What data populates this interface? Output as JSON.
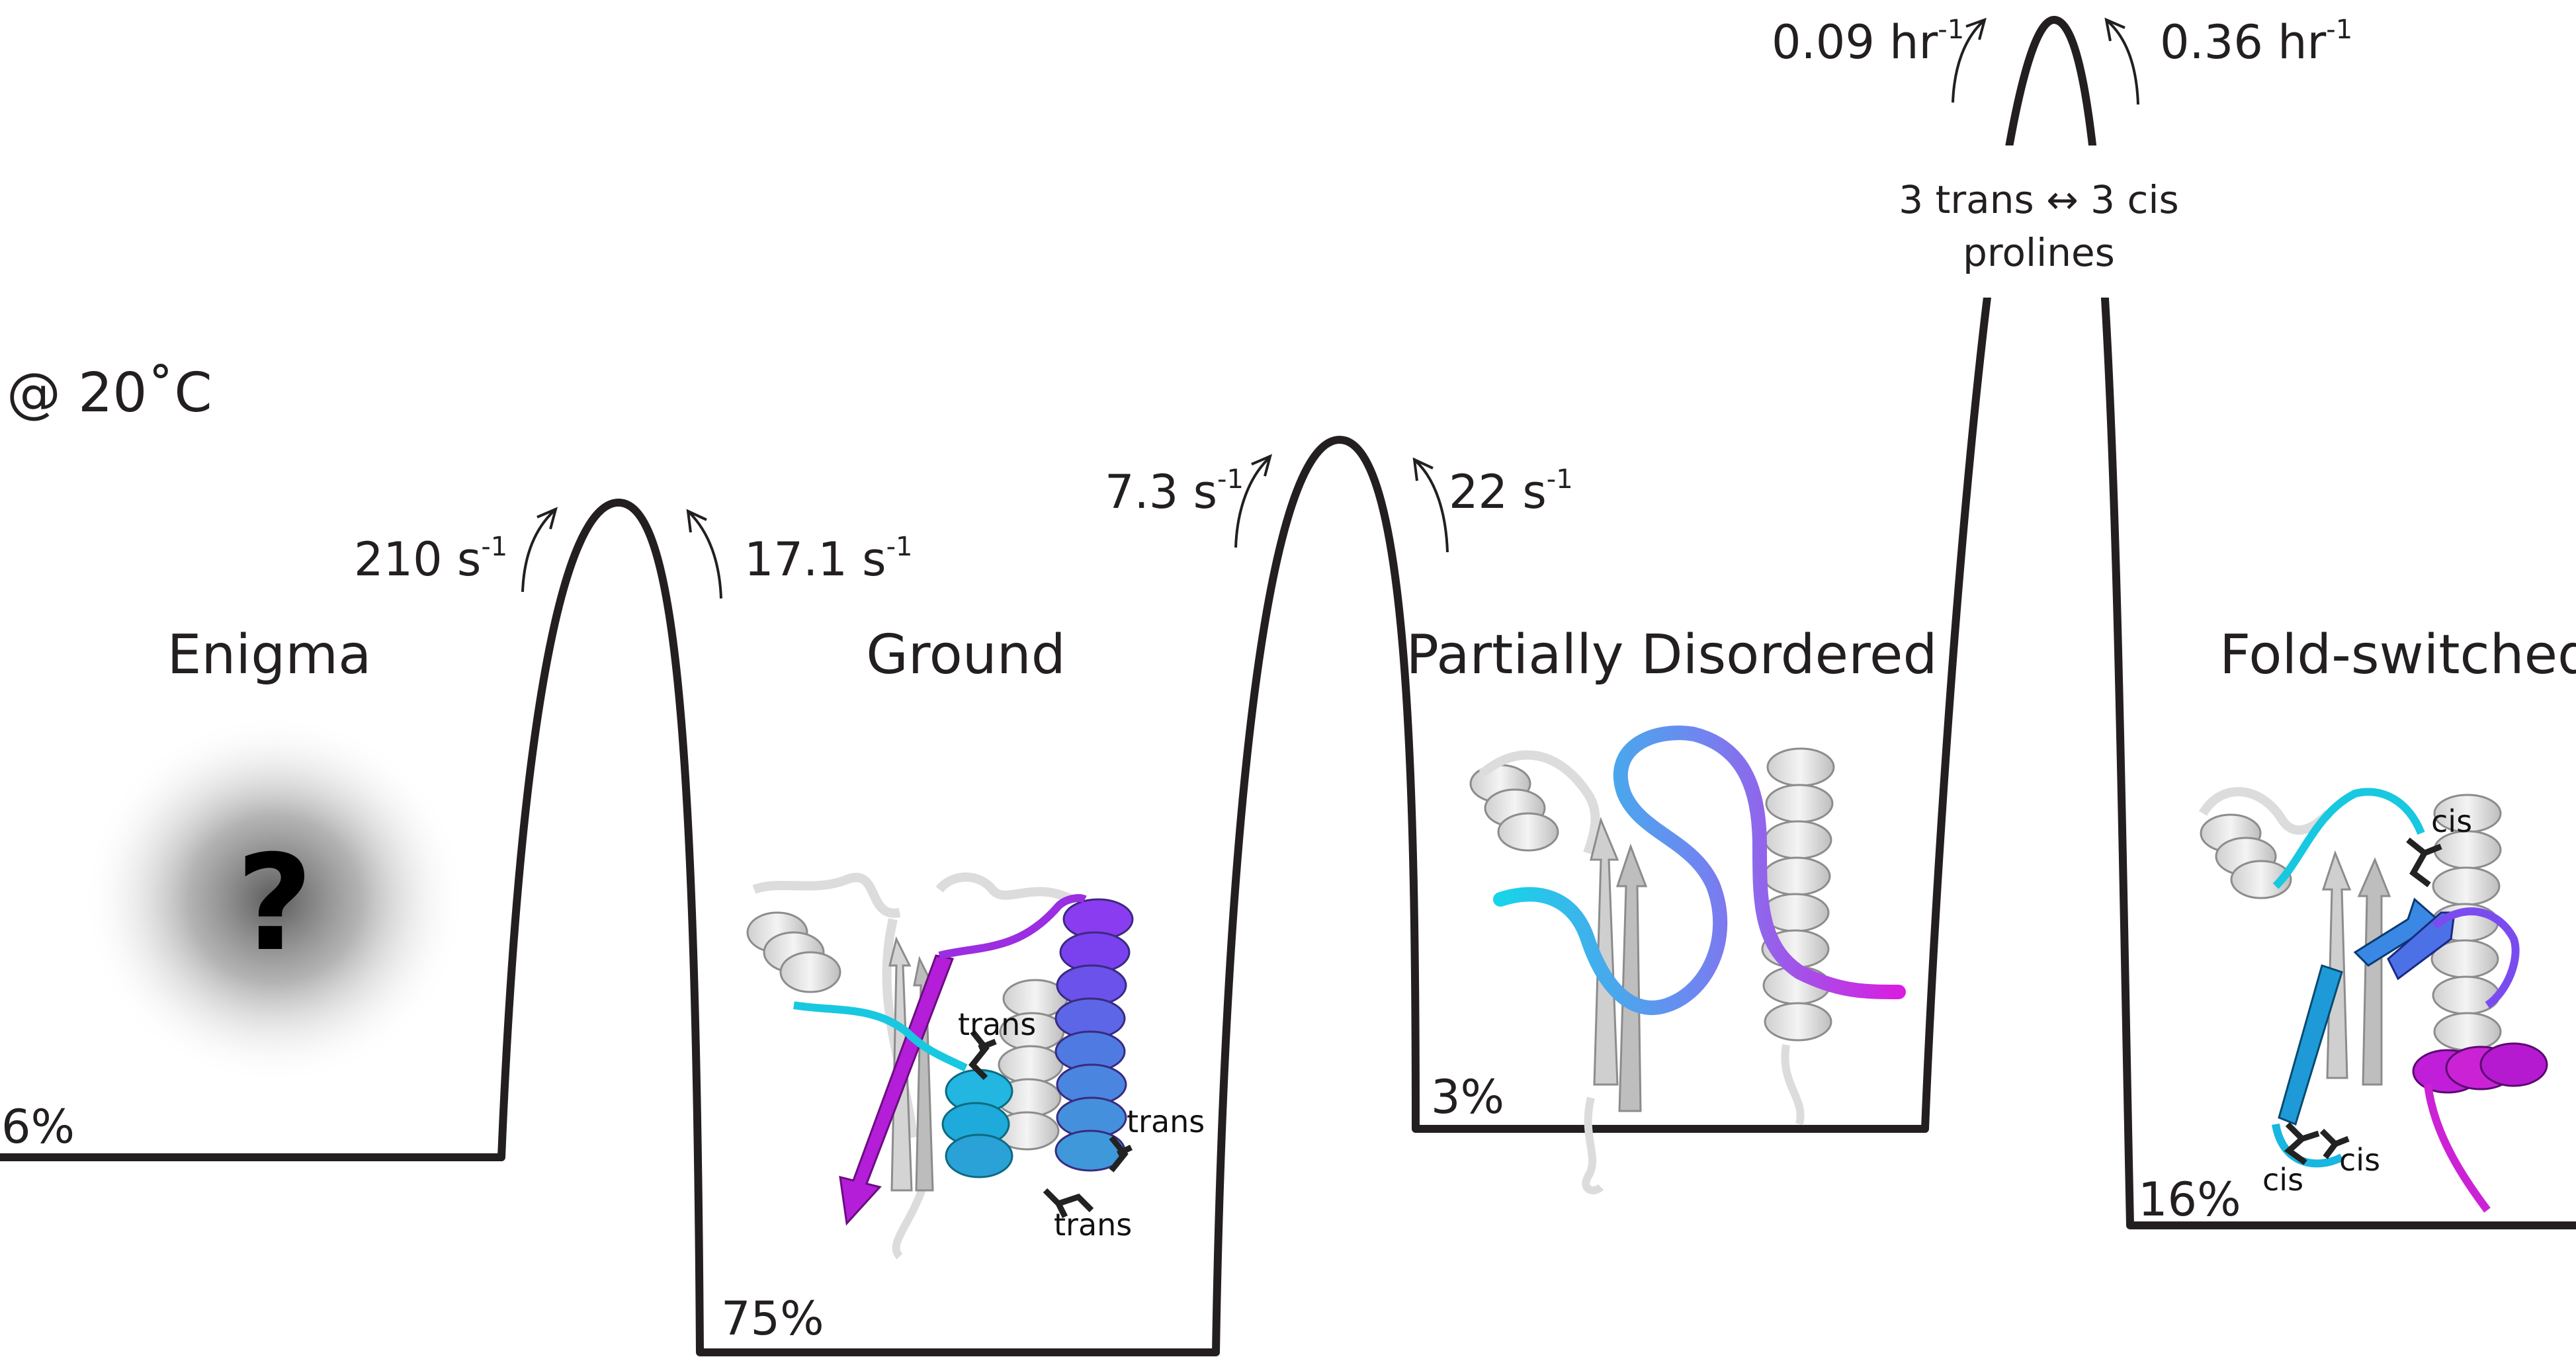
{
  "temperature": "@ 20˚C",
  "states": [
    {
      "name": "Enigma",
      "population": "6%"
    },
    {
      "name": "Ground",
      "population": "75%"
    },
    {
      "name": "Partially Disordered",
      "population": "3%"
    },
    {
      "name": "Fold-switched",
      "population": "16%"
    }
  ],
  "barriers": [
    {
      "forward_value": "210 s",
      "forward_sup": "-1",
      "reverse_value": "17.1 s",
      "reverse_sup": "-1"
    },
    {
      "forward_value": "7.3 s",
      "forward_sup": "-1",
      "reverse_value": "22 s",
      "reverse_sup": "-1"
    },
    {
      "forward_value": "0.09 hr",
      "forward_sup": "-1",
      "reverse_value": "0.36 hr",
      "reverse_sup": "-1",
      "note_line1": "3 trans ↔ 3 cis",
      "note_line2": "prolines"
    }
  ],
  "enigma_symbol": "?",
  "ground_residue_labels": [
    "trans",
    "trans",
    "trans"
  ],
  "foldswitched_residue_labels": [
    "cis",
    "cis",
    "cis"
  ],
  "colors": {
    "line": "#231f20",
    "cyan": "#18c8e0",
    "blue": "#4f7fe0",
    "violet": "#7b3ff0",
    "magenta": "#cc1ed8",
    "ribbon": "#e6e6e6"
  }
}
